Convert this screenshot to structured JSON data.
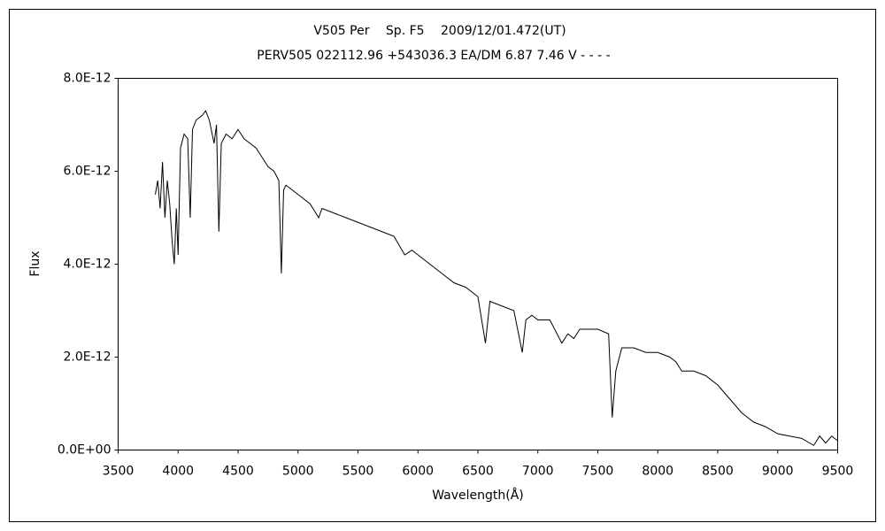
{
  "chart_data": {
    "type": "line",
    "title": "V505 Per　 Sp. F5　 2009/12/01.472(UT)",
    "subtitle": "PERV505 022112.96 +543036.3 EA/DM 6.87 7.46 V - - - -",
    "xlabel": "Wavelength(Å)",
    "ylabel": "Flux",
    "color": "#000000",
    "grid": false,
    "xlim": [
      3500,
      9500
    ],
    "xticks": [
      3500,
      4000,
      4500,
      5000,
      5500,
      6000,
      6500,
      7000,
      7500,
      8000,
      8500,
      9000,
      9500
    ],
    "ylim": [
      0,
      8e-12
    ],
    "yticks": [
      {
        "value": 0,
        "label": "0.0E+00"
      },
      {
        "value": 2e-12,
        "label": "2.0E-12"
      },
      {
        "value": 4e-12,
        "label": "4.0E-12"
      },
      {
        "value": 6e-12,
        "label": "6.0E-12"
      },
      {
        "value": 8e-12,
        "label": "8.0E-12"
      }
    ],
    "x": [
      3810,
      3830,
      3850,
      3870,
      3890,
      3910,
      3930,
      3950,
      3968,
      3985,
      4000,
      4020,
      4050,
      4080,
      4101,
      4120,
      4150,
      4200,
      4230,
      4260,
      4300,
      4320,
      4340,
      4360,
      4400,
      4450,
      4500,
      4550,
      4600,
      4650,
      4700,
      4750,
      4800,
      4840,
      4861,
      4880,
      4900,
      4950,
      5000,
      5100,
      5172,
      5200,
      5300,
      5400,
      5500,
      5600,
      5700,
      5800,
      5890,
      5950,
      6000,
      6100,
      6200,
      6300,
      6400,
      6500,
      6563,
      6600,
      6700,
      6800,
      6870,
      6900,
      6950,
      7000,
      7100,
      7200,
      7250,
      7300,
      7350,
      7400,
      7500,
      7590,
      7620,
      7650,
      7700,
      7800,
      7900,
      8000,
      8100,
      8150,
      8200,
      8300,
      8400,
      8500,
      8600,
      8700,
      8800,
      8900,
      9000,
      9100,
      9200,
      9300,
      9350,
      9400,
      9450,
      9500
    ],
    "values": [
      5.5e-12,
      5.8e-12,
      5.2e-12,
      6.2e-12,
      5e-12,
      5.8e-12,
      5.3e-12,
      4.5e-12,
      4e-12,
      5.2e-12,
      4.2e-12,
      6.5e-12,
      6.8e-12,
      6.7e-12,
      5e-12,
      6.9e-12,
      7.1e-12,
      7.2e-12,
      7.3e-12,
      7.1e-12,
      6.6e-12,
      7e-12,
      4.7e-12,
      6.6e-12,
      6.8e-12,
      6.7e-12,
      6.9e-12,
      6.7e-12,
      6.6e-12,
      6.5e-12,
      6.3e-12,
      6.1e-12,
      6e-12,
      5.8e-12,
      3.8e-12,
      5.6e-12,
      5.7e-12,
      5.6e-12,
      5.5e-12,
      5.3e-12,
      5e-12,
      5.2e-12,
      5.1e-12,
      5e-12,
      4.9e-12,
      4.8e-12,
      4.7e-12,
      4.6e-12,
      4.2e-12,
      4.3e-12,
      4.2e-12,
      4e-12,
      3.8e-12,
      3.6e-12,
      3.5e-12,
      3.3e-12,
      2.3e-12,
      3.2e-12,
      3.1e-12,
      3e-12,
      2.1e-12,
      2.8e-12,
      2.9e-12,
      2.8e-12,
      2.8e-12,
      2.3e-12,
      2.5e-12,
      2.4e-12,
      2.6e-12,
      2.6e-12,
      2.6e-12,
      2.5e-12,
      7e-13,
      1.7e-12,
      2.2e-12,
      2.2e-12,
      2.1e-12,
      2.1e-12,
      2e-12,
      1.9e-12,
      1.7e-12,
      1.7e-12,
      1.6e-12,
      1.4e-12,
      1.1e-12,
      8e-13,
      6e-13,
      5e-13,
      3.5e-13,
      3e-13,
      2.5e-13,
      1e-13,
      3e-13,
      1.5e-13,
      3e-13,
      2e-13
    ]
  }
}
